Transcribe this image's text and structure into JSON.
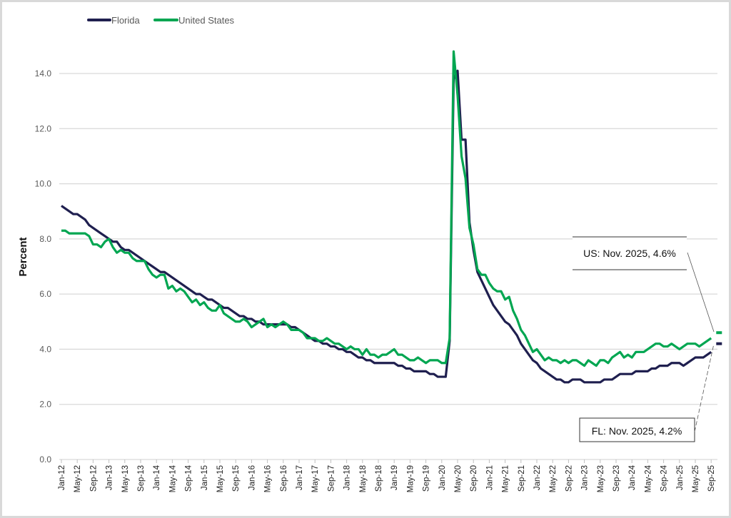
{
  "chart_data": {
    "type": "line",
    "title": "",
    "xlabel": "",
    "ylabel": "Percent",
    "ylim": [
      0,
      14
    ],
    "yticks": [
      "0.0",
      "2.0",
      "4.0",
      "6.0",
      "8.0",
      "10.0",
      "12.0",
      "14.0"
    ],
    "grid": true,
    "legend_position": "top-left",
    "start_month": "Jan-12",
    "xtick_labels": [
      "Jan-12",
      "May-12",
      "Sep-12",
      "Jan-13",
      "May-13",
      "Sep-13",
      "Jan-14",
      "May-14",
      "Sep-14",
      "Jan-15",
      "May-15",
      "Sep-15",
      "Jan-16",
      "May-16",
      "Sep-16",
      "Jan-17",
      "May-17",
      "Sep-17",
      "Jan-18",
      "May-18",
      "Sep-18",
      "Jan-19",
      "May-19",
      "Sep-19",
      "Jan-20",
      "May-20",
      "Sep-20",
      "Jan-21",
      "May-21",
      "Sep-21",
      "Jan-22",
      "May-22",
      "Sep-22",
      "Jan-23",
      "May-23",
      "Sep-23",
      "Jan-24",
      "May-24",
      "Sep-24",
      "Jan-25",
      "May-25",
      "Sep-25"
    ],
    "series": [
      {
        "name": "Florida",
        "color": "#1f1f4f",
        "values": [
          9.2,
          9.1,
          9.0,
          8.9,
          8.9,
          8.8,
          8.7,
          8.5,
          8.4,
          8.3,
          8.2,
          8.1,
          8.0,
          7.9,
          7.9,
          7.7,
          7.6,
          7.6,
          7.5,
          7.4,
          7.3,
          7.2,
          7.1,
          7.0,
          6.9,
          6.8,
          6.8,
          6.7,
          6.6,
          6.5,
          6.4,
          6.3,
          6.2,
          6.1,
          6.0,
          6.0,
          5.9,
          5.8,
          5.8,
          5.7,
          5.6,
          5.5,
          5.5,
          5.4,
          5.3,
          5.2,
          5.2,
          5.1,
          5.1,
          5.0,
          5.0,
          4.9,
          4.9,
          4.9,
          4.9,
          4.9,
          4.9,
          4.9,
          4.8,
          4.8,
          4.7,
          4.6,
          4.5,
          4.4,
          4.3,
          4.3,
          4.2,
          4.2,
          4.1,
          4.1,
          4.0,
          4.0,
          3.9,
          3.9,
          3.8,
          3.7,
          3.7,
          3.6,
          3.6,
          3.5,
          3.5,
          3.5,
          3.5,
          3.5,
          3.5,
          3.4,
          3.4,
          3.3,
          3.3,
          3.2,
          3.2,
          3.2,
          3.2,
          3.1,
          3.1,
          3.0,
          3.0,
          3.0,
          4.3,
          13.8,
          14.1,
          11.6,
          11.6,
          8.6,
          7.6,
          6.8,
          6.5,
          6.2,
          5.9,
          5.6,
          5.4,
          5.2,
          5.0,
          4.9,
          4.7,
          4.5,
          4.2,
          4.0,
          3.8,
          3.6,
          3.5,
          3.3,
          3.2,
          3.1,
          3.0,
          2.9,
          2.9,
          2.8,
          2.8,
          2.9,
          2.9,
          2.9,
          2.8,
          2.8,
          2.8,
          2.8,
          2.8,
          2.9,
          2.9,
          2.9,
          3.0,
          3.1,
          3.1,
          3.1,
          3.1,
          3.2,
          3.2,
          3.2,
          3.2,
          3.3,
          3.3,
          3.4,
          3.4,
          3.4,
          3.5,
          3.5,
          3.5,
          3.4,
          3.5,
          3.6,
          3.7,
          3.7,
          3.7,
          3.8,
          3.9,
          null,
          4.2
        ]
      },
      {
        "name": "United States",
        "color": "#00a651",
        "values": [
          8.3,
          8.3,
          8.2,
          8.2,
          8.2,
          8.2,
          8.2,
          8.1,
          7.8,
          7.8,
          7.7,
          7.9,
          8.0,
          7.7,
          7.5,
          7.6,
          7.5,
          7.5,
          7.3,
          7.2,
          7.2,
          7.2,
          6.9,
          6.7,
          6.6,
          6.7,
          6.7,
          6.2,
          6.3,
          6.1,
          6.2,
          6.1,
          5.9,
          5.7,
          5.8,
          5.6,
          5.7,
          5.5,
          5.4,
          5.4,
          5.6,
          5.3,
          5.2,
          5.1,
          5.0,
          5.0,
          5.1,
          5.0,
          4.8,
          4.9,
          5.0,
          5.1,
          4.8,
          4.9,
          4.8,
          4.9,
          5.0,
          4.9,
          4.7,
          4.7,
          4.7,
          4.6,
          4.4,
          4.4,
          4.4,
          4.3,
          4.3,
          4.4,
          4.3,
          4.2,
          4.2,
          4.1,
          4.0,
          4.1,
          4.0,
          4.0,
          3.8,
          4.0,
          3.8,
          3.8,
          3.7,
          3.8,
          3.8,
          3.9,
          4.0,
          3.8,
          3.8,
          3.7,
          3.6,
          3.6,
          3.7,
          3.6,
          3.5,
          3.6,
          3.6,
          3.6,
          3.5,
          3.5,
          4.4,
          14.8,
          13.2,
          11.0,
          10.2,
          8.4,
          7.8,
          6.9,
          6.7,
          6.7,
          6.4,
          6.2,
          6.1,
          6.1,
          5.8,
          5.9,
          5.4,
          5.1,
          4.7,
          4.5,
          4.2,
          3.9,
          4.0,
          3.8,
          3.6,
          3.7,
          3.6,
          3.6,
          3.5,
          3.6,
          3.5,
          3.6,
          3.6,
          3.5,
          3.4,
          3.6,
          3.5,
          3.4,
          3.6,
          3.6,
          3.5,
          3.7,
          3.8,
          3.9,
          3.7,
          3.8,
          3.7,
          3.9,
          3.9,
          3.9,
          4.0,
          4.1,
          4.2,
          4.2,
          4.1,
          4.1,
          4.2,
          4.1,
          4.0,
          4.1,
          4.2,
          4.2,
          4.2,
          4.1,
          4.2,
          4.3,
          4.4,
          null,
          4.6
        ]
      }
    ],
    "annotations": {
      "us": "US: Nov. 2025, 4.6%",
      "fl": "FL: Nov. 2025, 4.2%"
    }
  }
}
